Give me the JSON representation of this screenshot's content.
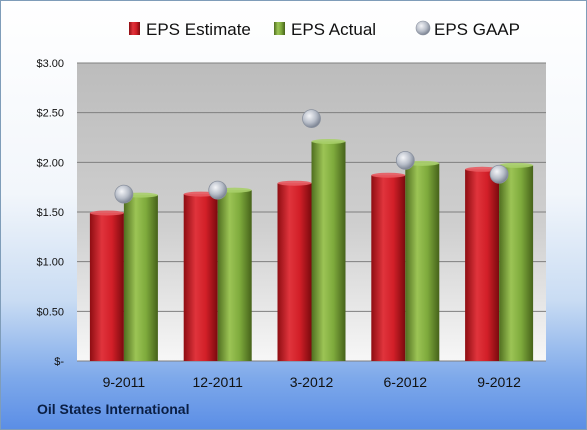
{
  "company": "Oil States International",
  "colors": {
    "estimate": "#d4202a",
    "actual": "#7eaa3c",
    "gaap": "#b9c0cc"
  },
  "chart_data": {
    "type": "bar",
    "categories": [
      "9-2011",
      "12-2011",
      "3-2012",
      "6-2012",
      "9-2012"
    ],
    "series": [
      {
        "name": "EPS Estimate",
        "values": [
          1.49,
          1.68,
          1.79,
          1.87,
          1.93
        ],
        "style": "bar"
      },
      {
        "name": "EPS Actual",
        "values": [
          1.67,
          1.72,
          2.21,
          1.99,
          1.97
        ],
        "style": "bar"
      },
      {
        "name": "EPS GAAP",
        "values": [
          1.68,
          1.72,
          2.44,
          2.02,
          1.88
        ],
        "style": "marker"
      }
    ],
    "yticks": [
      "$-",
      "$0.50",
      "$1.00",
      "$1.50",
      "$2.00",
      "$2.50",
      "$3.00"
    ],
    "ylim": [
      0,
      3
    ],
    "grid": true,
    "legend": "top"
  }
}
